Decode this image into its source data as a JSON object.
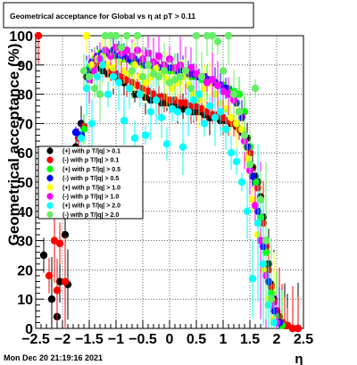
{
  "chart_data": {
    "type": "scatter",
    "title": "Geometrical acceptance for Global vs   η at pT > 0.11",
    "xlabel": "η",
    "ylabel": "Geometrical acceptance (%)",
    "xlim": [
      -2.5,
      2.5
    ],
    "ylim": [
      0,
      100
    ],
    "xticks": [
      "−2.5",
      "−2",
      "−1.5",
      "−1",
      "−0.5",
      "0",
      "0.5",
      "1",
      "1.5",
      "2",
      "2.5"
    ],
    "yticks": [
      "0",
      "10",
      "20",
      "30",
      "40",
      "50",
      "60",
      "70",
      "80",
      "90",
      "100"
    ],
    "grid": true,
    "legend_position": "left-middle",
    "footer": "Mon Dec 20 21:19:16 2021",
    "series": [
      {
        "name": "(+) with p T/|q| > 0.1",
        "color": "#000000",
        "x": [
          -2.35,
          -2.2,
          -2.1,
          -2.05,
          -1.95,
          -1.9,
          -1.75,
          -1.65,
          -1.55,
          -1.45,
          -1.35,
          -1.25,
          -1.15,
          -1.05,
          -0.95,
          -0.85,
          -0.75,
          -0.65,
          -0.55,
          -0.45,
          -0.35,
          -0.25,
          -0.15,
          -0.05,
          0.05,
          0.15,
          0.25,
          0.35,
          0.45,
          0.55,
          0.65,
          0.75,
          0.85,
          0.95,
          1.05,
          1.15,
          1.25,
          1.35,
          1.45,
          1.55,
          1.6,
          1.65,
          1.7,
          1.75,
          1.8,
          1.85,
          1.9,
          1.95,
          2.0,
          2.05,
          2.1,
          2.15,
          2.2,
          2.3,
          2.4
        ],
        "y": [
          25,
          10,
          4,
          16,
          32,
          15,
          62,
          70,
          86,
          88,
          89,
          88,
          87,
          86,
          85,
          84,
          82,
          80,
          80,
          79,
          78,
          78,
          77,
          77,
          76,
          76,
          75,
          75,
          74,
          74,
          73,
          72,
          72,
          71,
          71,
          70,
          69,
          67,
          65,
          55,
          52,
          50,
          45,
          38,
          30,
          22,
          15,
          10,
          6,
          4,
          2,
          1,
          1,
          0,
          0
        ]
      },
      {
        "name": "(-) with p T/|q| > 0.1",
        "color": "#ff0000",
        "x": [
          -2.45,
          -2.25,
          -2.15,
          -2.1,
          -2.05,
          -1.95,
          -1.7,
          -1.6,
          -1.5,
          -1.4,
          -1.3,
          -1.2,
          -1.1,
          -1.0,
          -0.9,
          -0.8,
          -0.7,
          -0.6,
          -0.5,
          -0.4,
          -0.3,
          -0.2,
          -0.1,
          0.0,
          0.1,
          0.2,
          0.3,
          0.4,
          0.5,
          0.6,
          0.7,
          0.8,
          0.9,
          1.0,
          1.1,
          1.2,
          1.3,
          1.4,
          1.5,
          1.6,
          1.65,
          1.7,
          1.75,
          1.8,
          1.85,
          1.9,
          1.95,
          2.0,
          2.05,
          2.1,
          2.15,
          2.2,
          2.3,
          2.4
        ],
        "y": [
          100,
          18,
          30,
          13,
          29,
          16,
          65,
          69,
          89,
          90,
          91,
          90,
          88,
          87,
          86,
          85,
          84,
          83,
          82,
          81,
          80,
          79,
          79,
          78,
          78,
          77,
          77,
          76,
          76,
          75,
          74,
          73,
          73,
          72,
          71,
          70,
          68,
          66,
          60,
          50,
          48,
          44,
          36,
          28,
          20,
          14,
          9,
          6,
          4,
          2,
          1,
          1,
          0,
          0
        ]
      },
      {
        "name": "(+) with p T/|q| > 0.5",
        "color": "#00ff00",
        "x": [
          -1.6,
          -1.5,
          -1.4,
          -1.3,
          -1.2,
          -1.1,
          -1.0,
          -0.9,
          -0.8,
          -0.7,
          -0.6,
          -0.5,
          -0.4,
          -0.3,
          -0.2,
          -0.1,
          0.0,
          0.1,
          0.2,
          0.3,
          0.4,
          0.5,
          0.6,
          0.7,
          0.8,
          0.9,
          1.0,
          1.1,
          1.2,
          1.3,
          1.4,
          1.5,
          1.6,
          1.7,
          1.8,
          1.9,
          2.0,
          2.1
        ],
        "y": [
          68,
          89,
          92,
          94,
          95,
          94,
          93,
          92,
          92,
          91,
          91,
          90,
          90,
          89,
          89,
          88,
          88,
          88,
          87,
          87,
          86,
          86,
          85,
          84,
          84,
          83,
          83,
          82,
          81,
          80,
          74,
          62,
          50,
          38,
          26,
          12,
          4,
          1
        ]
      },
      {
        "name": "(-) with p T/|q| > 0.5",
        "color": "#0000ff",
        "x": [
          -1.75,
          -1.65,
          -1.55,
          -1.45,
          -1.35,
          -1.25,
          -1.15,
          -1.05,
          -0.95,
          -0.85,
          -0.75,
          -0.65,
          -0.55,
          -0.45,
          -0.35,
          -0.25,
          -0.15,
          -0.05,
          0.05,
          0.15,
          0.25,
          0.35,
          0.45,
          0.55,
          0.65,
          0.75,
          0.85,
          0.95,
          1.05,
          1.15,
          1.25,
          1.35,
          1.45,
          1.55,
          1.65,
          1.75,
          1.85,
          1.95,
          2.05
        ],
        "y": [
          67,
          66,
          88,
          91,
          93,
          94,
          94,
          95,
          93,
          93,
          92,
          92,
          91,
          90,
          90,
          90,
          89,
          89,
          89,
          88,
          88,
          87,
          87,
          86,
          86,
          85,
          84,
          83,
          82,
          80,
          77,
          72,
          62,
          52,
          40,
          28,
          16,
          6,
          2
        ]
      },
      {
        "name": "(+) with p T/|q| > 1.0",
        "color": "#ffff00",
        "x": [
          -1.55,
          -1.45,
          -1.35,
          -1.25,
          -1.15,
          -1.05,
          -0.95,
          -0.85,
          -0.75,
          -0.65,
          -0.55,
          -0.45,
          -0.35,
          -0.25,
          -0.15,
          -0.05,
          0.05,
          0.15,
          0.25,
          0.35,
          0.45,
          0.55,
          0.65,
          0.75,
          0.85,
          0.95,
          1.05,
          1.15,
          1.25,
          1.35,
          1.45,
          1.55,
          1.65,
          1.75,
          1.85,
          1.95
        ],
        "y": [
          100,
          90,
          92,
          93,
          90,
          89,
          91,
          88,
          87,
          90,
          86,
          84,
          86,
          89,
          87,
          85,
          82,
          84,
          86,
          83,
          80,
          78,
          82,
          84,
          80,
          77,
          75,
          72,
          70,
          68,
          58,
          44,
          32,
          20,
          10,
          3
        ]
      },
      {
        "name": "(-) with p T/|q| > 1.0",
        "color": "#ff00ff",
        "x": [
          -1.5,
          -1.4,
          -1.3,
          -1.2,
          -1.1,
          -1.0,
          -0.9,
          -0.8,
          -0.7,
          -0.6,
          -0.5,
          -0.4,
          -0.3,
          -0.2,
          -0.1,
          0.0,
          0.1,
          0.2,
          0.3,
          0.4,
          0.5,
          0.6,
          0.7,
          0.8,
          0.9,
          1.0,
          1.1,
          1.2,
          1.3,
          1.4,
          1.5,
          1.6,
          1.7,
          1.8,
          1.9,
          2.0
        ],
        "y": [
          85,
          88,
          92,
          95,
          93,
          96,
          94,
          95,
          93,
          95,
          92,
          94,
          91,
          93,
          90,
          92,
          89,
          90,
          88,
          89,
          87,
          86,
          84,
          85,
          83,
          81,
          80,
          78,
          74,
          64,
          54,
          42,
          30,
          18,
          8,
          2
        ]
      },
      {
        "name": "(+) with p T/|q| > 2.0",
        "color": "#00ffff",
        "x": [
          -1.65,
          -1.55,
          -1.45,
          -1.35,
          -1.25,
          -1.15,
          -1.05,
          -0.95,
          -0.85,
          -0.75,
          -0.65,
          -0.55,
          -0.45,
          -0.35,
          -0.25,
          -0.15,
          -0.05,
          0.05,
          0.15,
          0.25,
          0.35,
          0.45,
          0.55,
          0.65,
          0.75,
          0.85,
          0.95,
          1.05,
          1.15,
          1.25,
          1.35,
          1.45,
          1.55,
          1.65,
          1.75,
          1.85,
          1.95
        ],
        "y": [
          65,
          82,
          70,
          86,
          90,
          80,
          86,
          84,
          71,
          82,
          65,
          80,
          66,
          74,
          78,
          72,
          63,
          75,
          74,
          62,
          74,
          78,
          80,
          70,
          76,
          72,
          74,
          68,
          60,
          57,
          50,
          40,
          17,
          36,
          22,
          8,
          2
        ]
      },
      {
        "name": "(-) with p T/|q| > 2.0",
        "color": "#66ee66",
        "x": [
          -1.6,
          -1.5,
          -1.4,
          -1.3,
          -1.2,
          -1.1,
          -1.0,
          -0.9,
          -0.8,
          -0.7,
          -0.6,
          -0.5,
          -0.4,
          -0.3,
          -0.2,
          -0.1,
          0.0,
          0.1,
          0.2,
          0.3,
          0.4,
          0.5,
          0.6,
          0.7,
          0.8,
          0.9,
          1.0,
          1.1,
          1.2,
          1.3,
          1.4,
          1.5,
          1.6,
          1.7,
          1.8,
          1.9
        ],
        "y": [
          88,
          86,
          82,
          80,
          100,
          100,
          100,
          96,
          100,
          88,
          100,
          86,
          90,
          87,
          86,
          88,
          84,
          85,
          86,
          88,
          82,
          100,
          86,
          100,
          100,
          98,
          88,
          100,
          80,
          74,
          66,
          56,
          82,
          44,
          30,
          10
        ]
      }
    ]
  }
}
